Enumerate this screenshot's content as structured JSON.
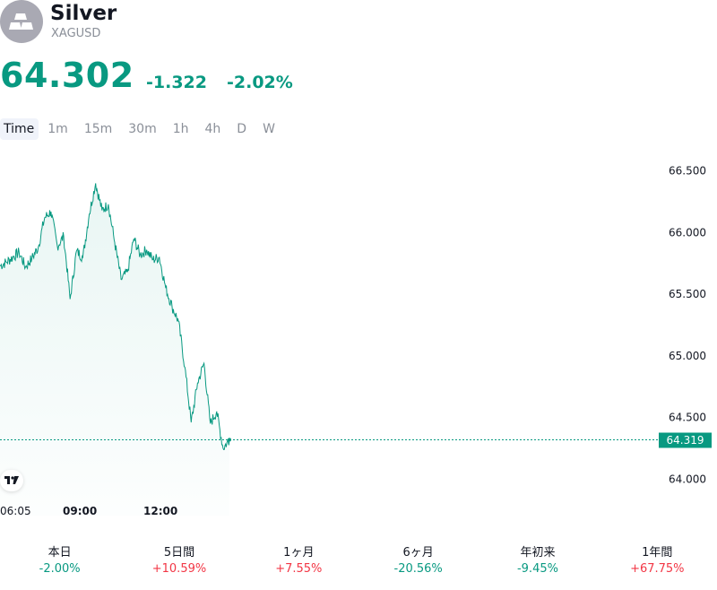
{
  "symbol": {
    "name": "Silver",
    "ticker": "XAGUSD",
    "logo_icon": "silver-bars-icon"
  },
  "quote": {
    "price": "64.302",
    "change": "-1.322",
    "change_percent": "-2.02%",
    "color": "#089981"
  },
  "timeframes": [
    "Time",
    "1m",
    "15m",
    "30m",
    "1h",
    "4h",
    "D",
    "W"
  ],
  "active_timeframe": "Time",
  "chart": {
    "last_price_label": "64.319",
    "time_labels": [
      "06:05",
      "09:00",
      "12:00"
    ],
    "badge_icon": "tradingview-logo-icon"
  },
  "chart_data": {
    "type": "area",
    "series": [
      {
        "x": [
          "06:05",
          "06:20",
          "06:35",
          "06:50",
          "07:05",
          "07:20",
          "07:35",
          "07:50",
          "08:05",
          "08:20",
          "08:35",
          "08:50",
          "09:05",
          "09:20",
          "09:35",
          "09:50",
          "10:05",
          "10:20",
          "10:35",
          "10:50",
          "11:05",
          "11:20",
          "11:35",
          "11:50",
          "12:05",
          "12:20",
          "12:35",
          "12:50",
          "13:05",
          "13:20",
          "13:35",
          "13:50",
          "14:05",
          "14:20",
          "14:35",
          "14:50",
          "15:05"
        ],
        "values": [
          65.73,
          65.76,
          65.8,
          65.84,
          65.72,
          65.79,
          65.88,
          66.12,
          66.17,
          65.89,
          65.97,
          65.46,
          65.85,
          65.8,
          66.15,
          66.4,
          66.18,
          66.23,
          65.92,
          65.62,
          65.68,
          65.95,
          65.82,
          65.86,
          65.78,
          65.8,
          65.55,
          65.4,
          65.28,
          64.91,
          64.46,
          64.78,
          64.94,
          64.45,
          64.55,
          64.25,
          64.32
        ]
      }
    ],
    "ylim": [
      63.85,
      66.65
    ],
    "yticks": [
      "64.000",
      "64.500",
      "65.000",
      "65.500",
      "66.000",
      "66.500"
    ],
    "xticks": [
      "06:05",
      "09:00",
      "12:00"
    ],
    "last_value": 64.319,
    "line_color": "#089981",
    "fill": "area-gradient",
    "grid": false
  },
  "performance": [
    {
      "period": "本日",
      "value": "-2.00%",
      "dir": "down"
    },
    {
      "period": "5日間",
      "value": "+10.59%",
      "dir": "up"
    },
    {
      "period": "1ヶ月",
      "value": "+7.55%",
      "dir": "up"
    },
    {
      "period": "6ヶ月",
      "value": "-20.56%",
      "dir": "down"
    },
    {
      "period": "年初来",
      "value": "-9.45%",
      "dir": "down"
    },
    {
      "period": "1年間",
      "value": "+67.75%",
      "dir": "up"
    }
  ]
}
